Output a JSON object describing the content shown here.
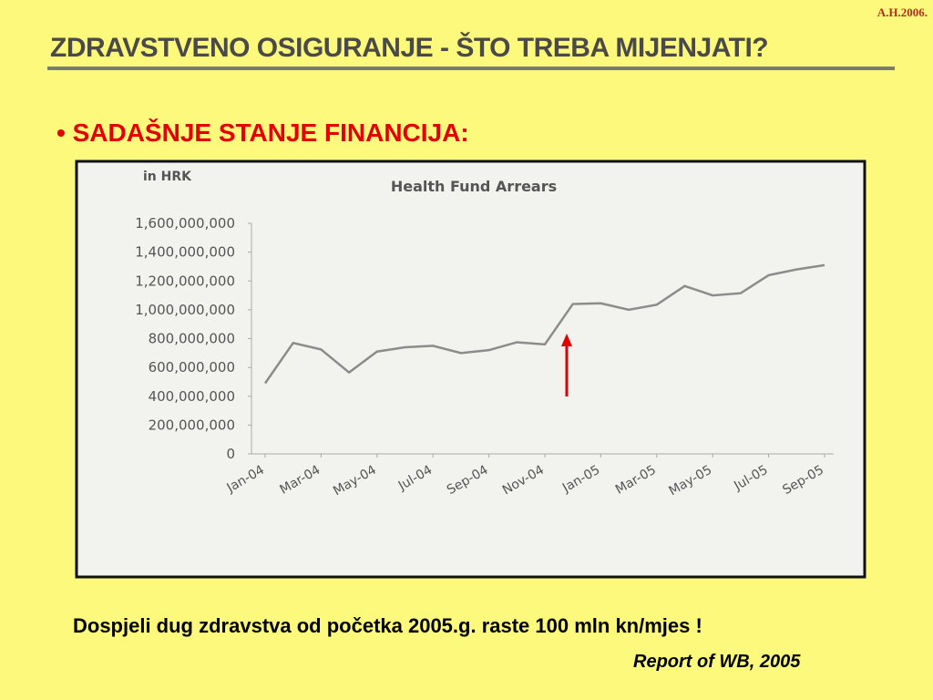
{
  "header": {
    "signature": "A.H.2006.",
    "title": "ZDRAVSTVENO OSIGURANJE - ŠTO TREBA MIJENJATI?"
  },
  "section": "• SADAŠNJE STANJE FINANCIJA:",
  "chart_data": {
    "type": "line",
    "title": "Health Fund Arrears",
    "y_label": "in HRK",
    "categories": [
      "Jan-04",
      null,
      "Mar-04",
      null,
      "May-04",
      null,
      "Jul-04",
      null,
      "Sep-04",
      null,
      "Nov-04",
      null,
      "Jan-05",
      null,
      "Mar-05",
      null,
      "May-05",
      null,
      "Jul-05",
      null,
      "Sep-05"
    ],
    "series": [
      {
        "name": "Health Fund Arrears",
        "color": "#8c8c8c",
        "values": [
          490000000,
          770000000,
          725000000,
          565000000,
          710000000,
          740000000,
          750000000,
          700000000,
          720000000,
          775000000,
          760000000,
          1040000000,
          1045000000,
          1000000000,
          1035000000,
          1165000000,
          1100000000,
          1115000000,
          1240000000,
          1280000000,
          1310000000
        ]
      }
    ],
    "ylim": [
      0,
      1600000000
    ],
    "yticks": [
      0,
      {
        "value": 200000000,
        "label": "200,000,000"
      },
      {
        "value": 400000000,
        "label": "400,000,000"
      },
      {
        "value": 600000000,
        "label": "600,000,000"
      },
      {
        "value": 800000000,
        "label": "800,000,000"
      },
      {
        "value": 1000000000,
        "label": "1,000,000,000"
      },
      {
        "value": 1200000000,
        "label": "1,200,000,000"
      },
      {
        "value": 1400000000,
        "label": "1,400,000,000"
      },
      {
        "value": 1600000000,
        "label": "1,600,000,000"
      }
    ],
    "grid": false
  },
  "footer": {
    "note": "Dospjeli dug zdravstva od početka 2005.g. raste 100 mln kn/mjes !",
    "source": "Report of WB, 2005"
  }
}
